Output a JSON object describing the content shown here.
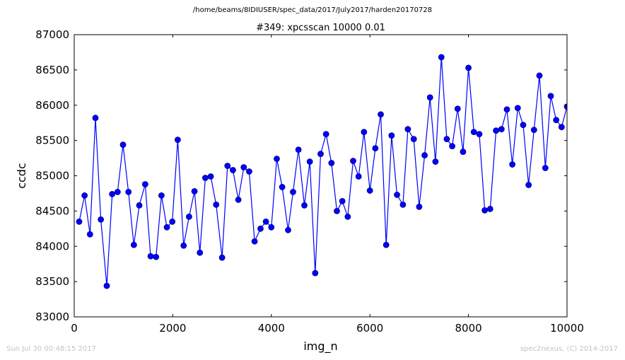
{
  "suptitle": "/home/beams/8IDIUSER/spec_data/2017/July2017/harden20170728",
  "footer": {
    "left": "Sun Jul 30 00:48:15 2017",
    "right": "spec2nexus, (C) 2014-2017"
  },
  "colors": {
    "line": "#0000ff",
    "marker_fill": "#0000ff",
    "marker_edge": "#000080",
    "footer_text": "#c4c4c4"
  },
  "chart_data": {
    "type": "line",
    "title": "#349: xpcsscan 10000 0.01",
    "xlabel": "img_n",
    "ylabel": "ccdc",
    "xlim": [
      0,
      10000
    ],
    "ylim": [
      83000,
      87000
    ],
    "xticks": [
      "0",
      "2000",
      "4000",
      "6000",
      "8000",
      "10000"
    ],
    "yticks": [
      "83000",
      "83500",
      "84000",
      "84500",
      "85000",
      "85500",
      "86000",
      "86500",
      "87000"
    ],
    "grid": false,
    "markers": true,
    "series": [
      {
        "x": [
          100,
          210,
          320,
          430,
          540,
          660,
          770,
          880,
          990,
          1100,
          1210,
          1320,
          1440,
          1550,
          1660,
          1770,
          1880,
          1990,
          2100,
          2220,
          2330,
          2440,
          2550,
          2660,
          2770,
          2880,
          3000,
          3110,
          3220,
          3330,
          3440,
          3550,
          3660,
          3780,
          3890,
          4000,
          4110,
          4220,
          4340,
          4440,
          4550,
          4670,
          4780,
          4890,
          5000,
          5110,
          5220,
          5330,
          5440,
          5550,
          5660,
          5770,
          5880,
          6000,
          6110,
          6220,
          6330,
          6440,
          6550,
          6670,
          6770,
          6890,
          7000,
          7110,
          7220,
          7330,
          7450,
          7560,
          7670,
          7780,
          7890,
          8000,
          8110,
          8220,
          8330,
          8440,
          8560,
          8670,
          8780,
          8890,
          9000,
          9110,
          9220,
          9330,
          9440,
          9560,
          9670,
          9780,
          9890,
          10000
        ],
        "values": [
          84350,
          84720,
          84170,
          85820,
          84380,
          83440,
          84740,
          84770,
          85440,
          84770,
          84020,
          84580,
          84880,
          83860,
          83850,
          84720,
          84270,
          84350,
          85510,
          84010,
          84420,
          84780,
          83910,
          84970,
          84990,
          84590,
          83840,
          85140,
          85080,
          84660,
          85120,
          85060,
          84070,
          84250,
          84350,
          84270,
          85240,
          84840,
          84230,
          84770,
          85370,
          84580,
          85200,
          83620,
          85310,
          85590,
          85180,
          84500,
          84640,
          84420,
          85210,
          84990,
          85620,
          84790,
          85390,
          85870,
          84020,
          85570,
          84730,
          84590,
          85660,
          85520,
          84560,
          85290,
          86110,
          85200,
          86680,
          85520,
          85420,
          85950,
          85340,
          86530,
          85620,
          85590,
          84510,
          84530,
          85640,
          85660,
          85940,
          85160,
          85960,
          85720,
          84870,
          85650,
          86420,
          85110,
          86130,
          85790,
          85690,
          85980
        ]
      }
    ]
  }
}
